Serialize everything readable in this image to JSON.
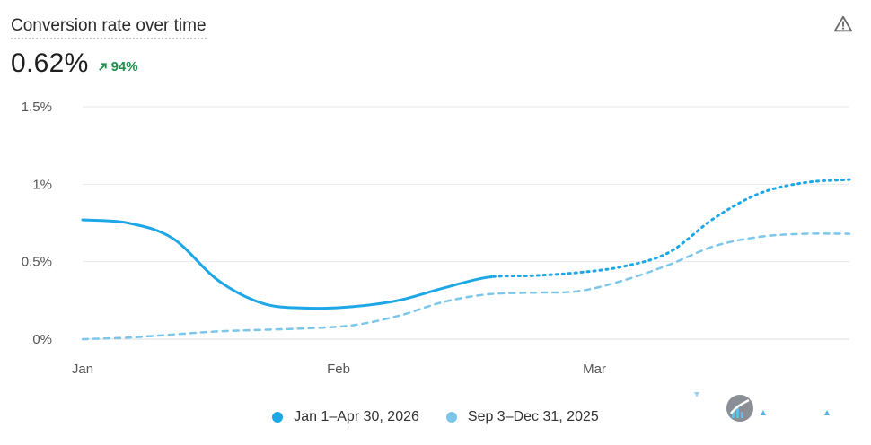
{
  "header": {
    "title": "Conversion rate over time",
    "metric": "0.62%",
    "delta": "94%",
    "delta_color": "#1f8f4e"
  },
  "icons": {
    "warning": "warning-triangle-icon",
    "delta": "arrow-up-right-icon"
  },
  "colors": {
    "current": "#1ea7e6",
    "previous": "#7cc6ea",
    "grid": "#e9e9e9"
  },
  "legend": {
    "current": "Jan 1–Apr 30, 2026",
    "previous": "Sep 3–Dec 31, 2025"
  },
  "chart_data": {
    "type": "line",
    "title": "Conversion rate over time",
    "y_ticks": [
      "0%",
      "0.5%",
      "1%",
      "1.5%"
    ],
    "y_tick_values": [
      0,
      0.5,
      1.0,
      1.5
    ],
    "x_ticks": [
      "Jan",
      "Feb",
      "Mar"
    ],
    "ylim": [
      0,
      1.5
    ],
    "grid": true,
    "legend_position": "bottom",
    "series": [
      {
        "name": "Jan 1–Apr 30, 2026",
        "style": "solid-then-dotted",
        "x": [
          "Jan 1",
          "Jan 8",
          "Jan 15",
          "Jan 22",
          "Jan 29",
          "Feb 5",
          "Feb 12",
          "Feb 19",
          "Feb 26",
          "Mar 5",
          "Mar 12",
          "Mar 19",
          "Mar 26",
          "Apr 2",
          "Apr 9",
          "Apr 16",
          "Apr 23",
          "Apr 30"
        ],
        "values": [
          0.77,
          0.75,
          0.65,
          0.38,
          0.23,
          0.2,
          0.21,
          0.25,
          0.33,
          0.4,
          0.41,
          0.43,
          0.47,
          0.56,
          0.78,
          0.94,
          1.01,
          1.03
        ]
      },
      {
        "name": "Sep 3–Dec 31, 2025",
        "style": "dashed",
        "x": [
          "Jan 1",
          "Jan 8",
          "Jan 15",
          "Jan 22",
          "Jan 29",
          "Feb 5",
          "Feb 12",
          "Feb 19",
          "Feb 26",
          "Mar 5",
          "Mar 12",
          "Mar 19",
          "Mar 26",
          "Apr 2",
          "Apr 9",
          "Apr 16",
          "Apr 23",
          "Apr 30"
        ],
        "values": [
          0.0,
          0.01,
          0.03,
          0.05,
          0.06,
          0.07,
          0.09,
          0.15,
          0.24,
          0.29,
          0.3,
          0.31,
          0.38,
          0.48,
          0.6,
          0.66,
          0.68,
          0.68
        ]
      }
    ]
  }
}
